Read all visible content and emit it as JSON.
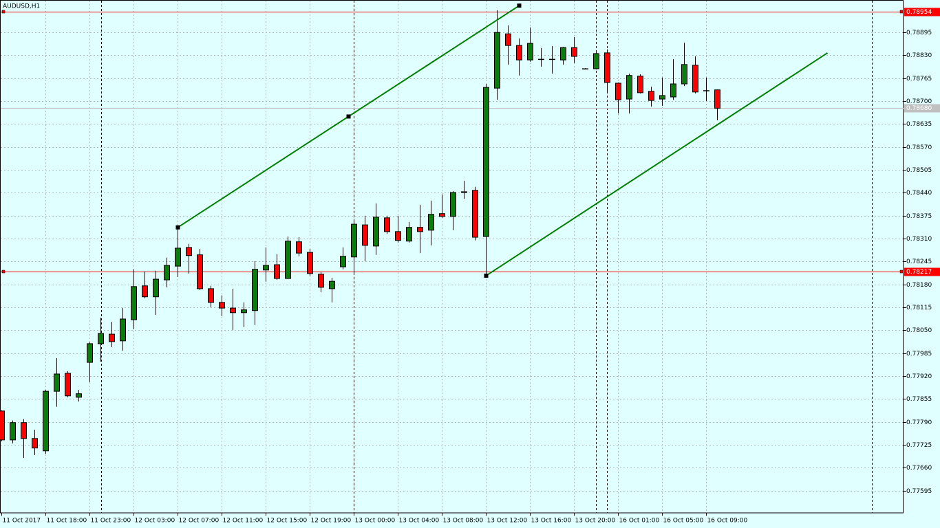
{
  "chart_data": {
    "type": "candlestick",
    "title": "AUDUSD,H1",
    "categories": [
      "11 Oct 2017",
      null,
      null,
      null,
      "11 Oct 18:00",
      null,
      null,
      null,
      "11 Oct 23:00",
      null,
      null,
      null,
      "12 Oct 03:00",
      null,
      null,
      null,
      "12 Oct 07:00",
      null,
      null,
      null,
      "12 Oct 11:00",
      null,
      null,
      null,
      "12 Oct 15:00",
      null,
      null,
      null,
      "12 Oct 19:00",
      null,
      null,
      null,
      "13 Oct 00:00",
      null,
      null,
      null,
      "13 Oct 04:00",
      null,
      null,
      null,
      "13 Oct 08:00",
      null,
      null,
      null,
      "13 Oct 12:00",
      null,
      null,
      null,
      "13 Oct 16:00",
      null,
      null,
      null,
      "13 Oct 20:00",
      null,
      null,
      null,
      "16 Oct 01:00",
      null,
      null,
      null,
      "16 Oct 05:00",
      null,
      null,
      null,
      "16 Oct 09:00",
      null
    ],
    "open": [
      0.77821,
      0.77739,
      0.77788,
      0.77743,
      0.77708,
      0.77877,
      0.77928,
      0.7786,
      0.77959,
      0.78012,
      0.78039,
      0.7802,
      0.7808,
      0.78176,
      0.78145,
      0.78193,
      0.78232,
      0.78285,
      0.78264,
      0.78168,
      0.78129,
      0.78113,
      0.781,
      0.78106,
      0.78221,
      0.78236,
      0.78197,
      0.78301,
      0.78271,
      0.78209,
      0.78168,
      0.7823,
      0.78258,
      0.78349,
      0.78289,
      0.78369,
      0.7833,
      0.78303,
      0.78342,
      0.78334,
      0.78381,
      0.78373,
      0.78441,
      0.78447,
      0.78316,
      0.78737,
      0.78891,
      0.78858,
      0.78817,
      0.78819,
      0.78819,
      0.78817,
      0.78852,
      0.78792,
      0.78792,
      0.78837,
      0.78751,
      0.78706,
      0.78771,
      0.78728,
      0.78706,
      0.78712,
      0.78749,
      0.78802,
      0.7873,
      0.78732
    ],
    "high": [
      0.77823,
      0.77794,
      0.77798,
      0.77768,
      0.77881,
      0.77971,
      0.77934,
      0.77881,
      0.78016,
      0.78086,
      0.78074,
      0.78113,
      0.78223,
      0.78217,
      0.78219,
      0.78256,
      0.78342,
      0.78295,
      0.78281,
      0.78176,
      0.78149,
      0.78168,
      0.78129,
      0.78246,
      0.78285,
      0.78266,
      0.78316,
      0.78314,
      0.78281,
      0.78215,
      0.78199,
      0.78285,
      0.78359,
      0.78375,
      0.7841,
      0.78375,
      0.78375,
      0.78357,
      0.78406,
      0.78418,
      0.78435,
      0.78445,
      0.78474,
      0.78457,
      0.78749,
      0.78958,
      0.78915,
      0.78878,
      0.78909,
      0.78851,
      0.78856,
      0.78854,
      0.78882,
      0.78794,
      0.78839,
      0.78847,
      0.78753,
      0.78778,
      0.78776,
      0.78741,
      0.78767,
      0.78819,
      0.78866,
      0.78827,
      0.78767,
      0.78733
    ],
    "low": [
      0.77735,
      0.77729,
      0.77688,
      0.77696,
      0.777,
      0.77833,
      0.7786,
      0.77848,
      0.77903,
      0.77961,
      0.78002,
      0.77992,
      0.78053,
      0.78141,
      0.78094,
      0.78172,
      0.78201,
      0.78211,
      0.78164,
      0.78115,
      0.7809,
      0.78051,
      0.78059,
      0.78065,
      0.78188,
      0.78193,
      0.78195,
      0.7826,
      0.78205,
      0.78158,
      0.78129,
      0.78223,
      0.78207,
      0.78246,
      0.78264,
      0.78324,
      0.78299,
      0.78299,
      0.78269,
      0.78291,
      0.78369,
      0.78334,
      0.78423,
      0.78305,
      0.78205,
      0.78704,
      0.78804,
      0.78773,
      0.78812,
      0.78798,
      0.78778,
      0.78804,
      0.78808,
      0.7879,
      0.7879,
      0.78722,
      0.78665,
      0.78665,
      0.78722,
      0.78685,
      0.78687,
      0.78704,
      0.78743,
      0.78722,
      0.787,
      0.78646
    ],
    "close": [
      0.77739,
      0.77788,
      0.77743,
      0.77716,
      0.77877,
      0.77926,
      0.77864,
      0.7787,
      0.78012,
      0.78041,
      0.78018,
      0.78082,
      0.78174,
      0.78145,
      0.78195,
      0.78234,
      0.78283,
      0.78262,
      0.78168,
      0.78129,
      0.78113,
      0.781,
      0.78108,
      0.78223,
      0.78234,
      0.78197,
      0.78303,
      0.78269,
      0.78211,
      0.78172,
      0.78189,
      0.7826,
      0.78351,
      0.78291,
      0.78371,
      0.7833,
      0.78305,
      0.78342,
      0.7833,
      0.78379,
      0.78373,
      0.78441,
      0.78443,
      0.78314,
      0.78739,
      0.78895,
      0.78858,
      0.78817,
      0.78864,
      0.78819,
      0.78819,
      0.78852,
      0.78827,
      0.78792,
      0.78835,
      0.78753,
      0.78704,
      0.78773,
      0.78724,
      0.78702,
      0.78716,
      0.78749,
      0.78804,
      0.78726,
      0.7873,
      0.7868
    ],
    "up_color": "#0a7d0a",
    "down_color": "#ff0000",
    "ylim": [
      0.77532,
      0.78987
    ],
    "yticks": [
      {
        "value": 0.78895,
        "label": "0.78895"
      },
      {
        "value": 0.7883,
        "label": "0.78830"
      },
      {
        "value": 0.78765,
        "label": "0.78765"
      },
      {
        "value": 0.787,
        "label": "0.78700"
      },
      {
        "value": 0.78635,
        "label": "0.78635"
      },
      {
        "value": 0.7857,
        "label": "0.78570"
      },
      {
        "value": 0.78505,
        "label": "0.78505"
      },
      {
        "value": 0.7844,
        "label": "0.78440"
      },
      {
        "value": 0.78375,
        "label": "0.78375"
      },
      {
        "value": 0.7831,
        "label": "0.78310"
      },
      {
        "value": 0.78245,
        "label": "0.78245"
      },
      {
        "value": 0.7818,
        "label": "0.78180"
      },
      {
        "value": 0.78115,
        "label": "0.78115"
      },
      {
        "value": 0.7805,
        "label": "0.78050"
      },
      {
        "value": 0.77985,
        "label": "0.77985"
      },
      {
        "value": 0.7792,
        "label": "0.77920"
      },
      {
        "value": 0.77855,
        "label": "0.77855"
      },
      {
        "value": 0.7779,
        "label": "0.77790"
      },
      {
        "value": 0.77725,
        "label": "0.77725"
      },
      {
        "value": 0.7766,
        "label": "0.77660"
      },
      {
        "value": 0.77595,
        "label": "0.77595"
      }
    ],
    "grid": true,
    "price_levels": [
      {
        "value": 0.78954,
        "label": "0.78954",
        "color": "#ff0000"
      },
      {
        "value": 0.78217,
        "label": "0.78217",
        "color": "#ff0000"
      },
      {
        "value": 0.7868,
        "label": "0.78680",
        "color": "#c0c0c0"
      }
    ],
    "trendlines": [
      {
        "x": [
          16,
          47
        ],
        "y": [
          0.78342,
          0.78971
        ],
        "color": "#008000",
        "selected": true
      },
      {
        "x": [
          44,
          75
        ],
        "y": [
          0.78205,
          0.78837
        ],
        "color": "#008000",
        "selected": false
      }
    ]
  }
}
